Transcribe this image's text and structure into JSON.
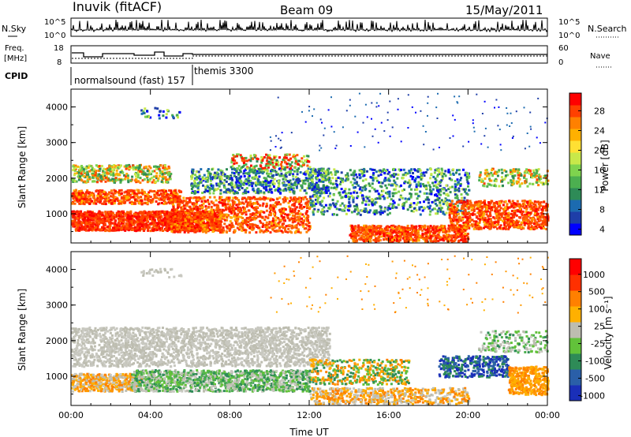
{
  "header": {
    "station": "Inuvik (fitACF)",
    "beam": "Beam 09",
    "date": "15/May/2011"
  },
  "top_panel": {
    "left_label": "N.Sky",
    "left_ticks": [
      "10^5",
      "10^0"
    ],
    "right_label": "N.Search",
    "right_ticks": [
      "10^5",
      "10^0"
    ]
  },
  "freq_panel": {
    "left_label_1": "Freq.",
    "left_label_2": "[MHz]",
    "left_ticks": [
      "18",
      "8"
    ],
    "right_label": "Nave",
    "right_ticks": [
      "60",
      "0"
    ]
  },
  "cpid": {
    "label": "CPID",
    "program_1": "normalsound (fast) 157",
    "program_2": "themis 3300"
  },
  "chart_data": [
    {
      "type": "heatmap",
      "name": "power",
      "ylabel": "Slant Range [km]",
      "y_ticks": [
        "1000",
        "2000",
        "3000",
        "4000"
      ],
      "ylim": [
        180,
        4500
      ],
      "x_ticks": [
        "00:00",
        "04:00",
        "08:00",
        "12:00",
        "16:00",
        "20:00",
        "00:00"
      ],
      "xlim_hours": [
        0,
        24
      ],
      "colorbar_label": "Power [dB]",
      "colorbar_ticks": [
        "28",
        "24",
        "20",
        "16",
        "12",
        "8",
        "4"
      ],
      "colorbar_colors": [
        "#0000ff",
        "#1e3ea8",
        "#1c6bb0",
        "#2e8b57",
        "#4caf50",
        "#7fd34e",
        "#c8e84a",
        "#ffe033",
        "#ffb000",
        "#ff8000",
        "#ff4000",
        "#ff0000"
      ]
    },
    {
      "type": "heatmap",
      "name": "velocity",
      "ylabel": "Slant Range [km]",
      "y_ticks": [
        "1000",
        "2000",
        "3000",
        "4000"
      ],
      "ylim": [
        180,
        4500
      ],
      "x_ticks": [
        "00:00",
        "04:00",
        "08:00",
        "12:00",
        "16:00",
        "20:00",
        "00:00"
      ],
      "xlim_hours": [
        0,
        24
      ],
      "xlabel": "Time UT",
      "colorbar_label": "Velocity [m s⁻¹]",
      "colorbar_ticks": [
        "1000",
        "500",
        "100",
        "25",
        "-25",
        "-100",
        "-500",
        "-1000"
      ],
      "colorbar_colors": [
        "#1a2fb8",
        "#2a5fa8",
        "#2e8b57",
        "#62c23a",
        "#bdbdb0",
        "#ffb000",
        "#ff8000",
        "#ff3000",
        "#ff0000"
      ]
    }
  ]
}
